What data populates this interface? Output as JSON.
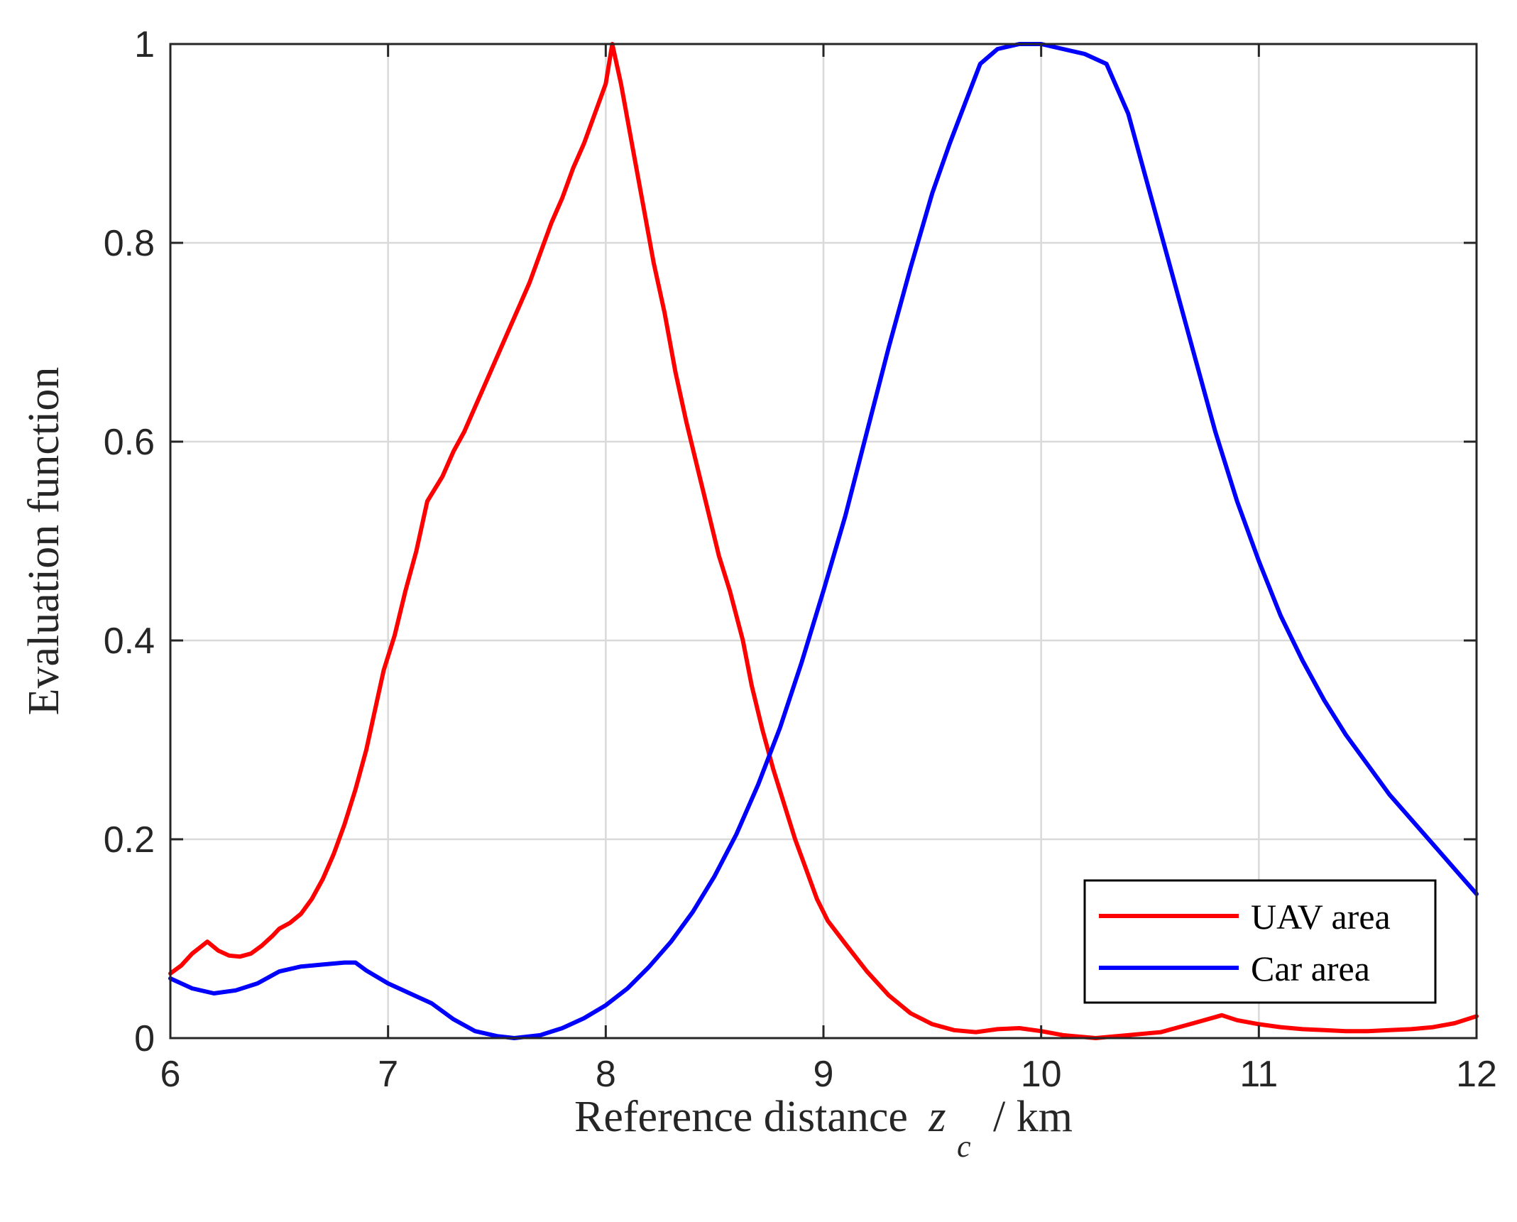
{
  "chart_data": {
    "type": "line",
    "xlabel": "Reference distance",
    "xlabel_symbol": "z",
    "xlabel_subscript": "c",
    "xlabel_unit": "/  km",
    "ylabel": "Evaluation function",
    "xlim": [
      6,
      12
    ],
    "ylim": [
      0,
      1
    ],
    "xticks": [
      6,
      7,
      8,
      9,
      10,
      11,
      12
    ],
    "xtick_labels": [
      "6",
      "7",
      "8",
      "9",
      "10",
      "11",
      "12"
    ],
    "yticks": [
      0,
      0.2,
      0.4,
      0.6,
      0.8,
      1
    ],
    "ytick_labels": [
      "0",
      "0.2",
      "0.4",
      "0.6",
      "0.8",
      "1"
    ],
    "grid": true,
    "legend_position": "bottom-right",
    "series": [
      {
        "name": "UAV area",
        "color": "#ff0000",
        "x": [
          6.0,
          6.05,
          6.1,
          6.17,
          6.22,
          6.27,
          6.32,
          6.37,
          6.42,
          6.47,
          6.5,
          6.55,
          6.6,
          6.65,
          6.7,
          6.75,
          6.8,
          6.85,
          6.9,
          6.95,
          6.98,
          7.03,
          7.08,
          7.13,
          7.18,
          7.25,
          7.3,
          7.35,
          7.4,
          7.45,
          7.5,
          7.55,
          7.6,
          7.65,
          7.7,
          7.75,
          7.8,
          7.85,
          7.9,
          7.95,
          8.0,
          8.03,
          8.07,
          8.12,
          8.17,
          8.22,
          8.27,
          8.32,
          8.37,
          8.42,
          8.47,
          8.52,
          8.57,
          8.63,
          8.67,
          8.72,
          8.77,
          8.82,
          8.87,
          8.92,
          8.97,
          9.02,
          9.1,
          9.2,
          9.3,
          9.4,
          9.5,
          9.6,
          9.7,
          9.8,
          9.9,
          10.0,
          10.1,
          10.25,
          10.4,
          10.55,
          10.7,
          10.83,
          10.9,
          11.0,
          11.1,
          11.2,
          11.3,
          11.4,
          11.5,
          11.6,
          11.7,
          11.8,
          11.9,
          12.0
        ],
        "y": [
          0.065,
          0.073,
          0.085,
          0.097,
          0.088,
          0.083,
          0.082,
          0.085,
          0.093,
          0.103,
          0.11,
          0.116,
          0.125,
          0.14,
          0.16,
          0.185,
          0.215,
          0.25,
          0.29,
          0.34,
          0.37,
          0.405,
          0.45,
          0.49,
          0.54,
          0.565,
          0.59,
          0.61,
          0.635,
          0.66,
          0.685,
          0.71,
          0.735,
          0.76,
          0.79,
          0.82,
          0.845,
          0.875,
          0.9,
          0.93,
          0.96,
          1.0,
          0.96,
          0.9,
          0.84,
          0.78,
          0.73,
          0.67,
          0.62,
          0.575,
          0.53,
          0.485,
          0.45,
          0.4,
          0.355,
          0.31,
          0.27,
          0.235,
          0.2,
          0.17,
          0.14,
          0.118,
          0.095,
          0.067,
          0.043,
          0.025,
          0.014,
          0.008,
          0.006,
          0.009,
          0.01,
          0.007,
          0.003,
          0.0,
          0.003,
          0.006,
          0.015,
          0.023,
          0.018,
          0.014,
          0.011,
          0.009,
          0.008,
          0.007,
          0.007,
          0.008,
          0.009,
          0.011,
          0.015,
          0.022
        ]
      },
      {
        "name": "Car area",
        "color": "#0000ff",
        "x": [
          6.0,
          6.1,
          6.2,
          6.3,
          6.4,
          6.5,
          6.6,
          6.7,
          6.8,
          6.85,
          6.9,
          7.0,
          7.1,
          7.2,
          7.3,
          7.4,
          7.5,
          7.58,
          7.7,
          7.8,
          7.9,
          8.0,
          8.1,
          8.2,
          8.3,
          8.4,
          8.5,
          8.6,
          8.7,
          8.8,
          8.9,
          9.0,
          9.1,
          9.2,
          9.3,
          9.4,
          9.5,
          9.58,
          9.65,
          9.72,
          9.8,
          9.9,
          10.0,
          10.1,
          10.2,
          10.3,
          10.35,
          10.4,
          10.5,
          10.6,
          10.7,
          10.8,
          10.9,
          11.0,
          11.1,
          11.2,
          11.3,
          11.4,
          11.5,
          11.6,
          11.7,
          11.8,
          11.9,
          12.0
        ],
        "y": [
          0.06,
          0.05,
          0.045,
          0.048,
          0.055,
          0.067,
          0.072,
          0.074,
          0.076,
          0.076,
          0.068,
          0.055,
          0.045,
          0.035,
          0.019,
          0.007,
          0.002,
          0.0,
          0.003,
          0.01,
          0.02,
          0.033,
          0.05,
          0.072,
          0.097,
          0.127,
          0.163,
          0.205,
          0.255,
          0.312,
          0.378,
          0.45,
          0.525,
          0.61,
          0.695,
          0.775,
          0.85,
          0.9,
          0.94,
          0.98,
          0.995,
          1.0,
          1.0,
          0.995,
          0.99,
          0.98,
          0.955,
          0.93,
          0.85,
          0.77,
          0.69,
          0.61,
          0.54,
          0.48,
          0.425,
          0.38,
          0.34,
          0.305,
          0.275,
          0.245,
          0.22,
          0.195,
          0.17,
          0.145
        ]
      }
    ]
  }
}
